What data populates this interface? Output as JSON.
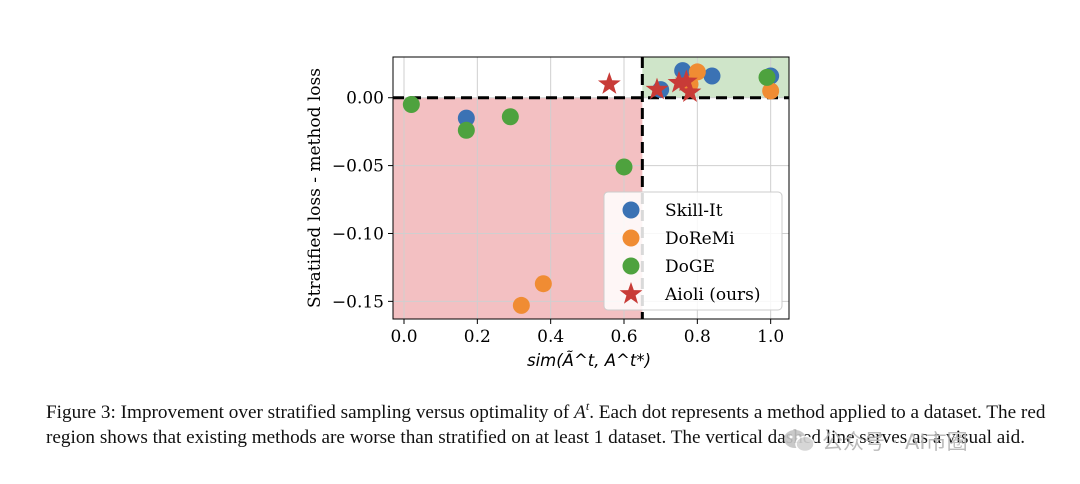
{
  "chart_data": {
    "type": "scatter",
    "title": "",
    "xlabel": "sim(Ã^t, A^t*)",
    "ylabel": "Stratified loss - method loss",
    "xlim": [
      -0.03,
      1.05
    ],
    "ylim": [
      -0.163,
      0.03
    ],
    "xticks": [
      0.0,
      0.2,
      0.4,
      0.6,
      0.8,
      1.0
    ],
    "xtick_labels": [
      "0.0",
      "0.2",
      "0.4",
      "0.6",
      "0.8",
      "1.0"
    ],
    "yticks": [
      0.0,
      -0.05,
      -0.1,
      -0.15
    ],
    "ytick_labels": [
      "0.00",
      "−0.05",
      "−0.10",
      "−0.15"
    ],
    "grid": true,
    "reference_lines": {
      "vertical_x": 0.65,
      "horizontal_y": 0.0,
      "style": "dashed"
    },
    "regions": [
      {
        "name": "red-region",
        "x": [
          -0.03,
          0.65
        ],
        "y": [
          -0.163,
          0.0
        ],
        "color": "#f3c0c2"
      },
      {
        "name": "green-region",
        "x": [
          0.65,
          1.05
        ],
        "y": [
          0.0,
          0.03
        ],
        "color": "#cfe5c9"
      }
    ],
    "legend_position": "lower-right",
    "series": [
      {
        "name": "Skill-It",
        "marker": "circle",
        "color": "#3b72b4",
        "x": [
          0.17,
          0.7,
          0.76,
          0.84,
          1.0
        ],
        "y": [
          -0.015,
          0.006,
          0.02,
          0.016,
          0.016
        ]
      },
      {
        "name": "DoReMi",
        "marker": "circle",
        "color": "#f08c33",
        "x": [
          0.32,
          0.38,
          0.78,
          0.8,
          1.0
        ],
        "y": [
          -0.153,
          -0.137,
          0.01,
          0.019,
          0.005
        ]
      },
      {
        "name": "DoGE",
        "marker": "circle",
        "color": "#4ea23e",
        "x": [
          0.02,
          0.17,
          0.29,
          0.6,
          0.99
        ],
        "y": [
          -0.005,
          -0.024,
          -0.014,
          -0.051,
          0.015
        ]
      },
      {
        "name": "Aioli (ours)",
        "marker": "star",
        "color": "#c83b37",
        "x": [
          0.56,
          0.69,
          0.75,
          0.77,
          0.78
        ],
        "y": [
          0.01,
          0.006,
          0.011,
          0.012,
          0.004
        ]
      }
    ]
  },
  "caption": {
    "label": "Figure 3: ",
    "sentence1_pre": "Improvement over stratified sampling versus optimality of ",
    "math_base": "A",
    "math_sup": "t",
    "sentence1_post": ". Each dot represents a method applied to a dataset. The red region shows that existing methods are worse than stratified on at least 1 dataset. The vertical dashed line serves as a visual aid."
  },
  "watermark": {
    "text": "公众号 · AI市圈"
  }
}
